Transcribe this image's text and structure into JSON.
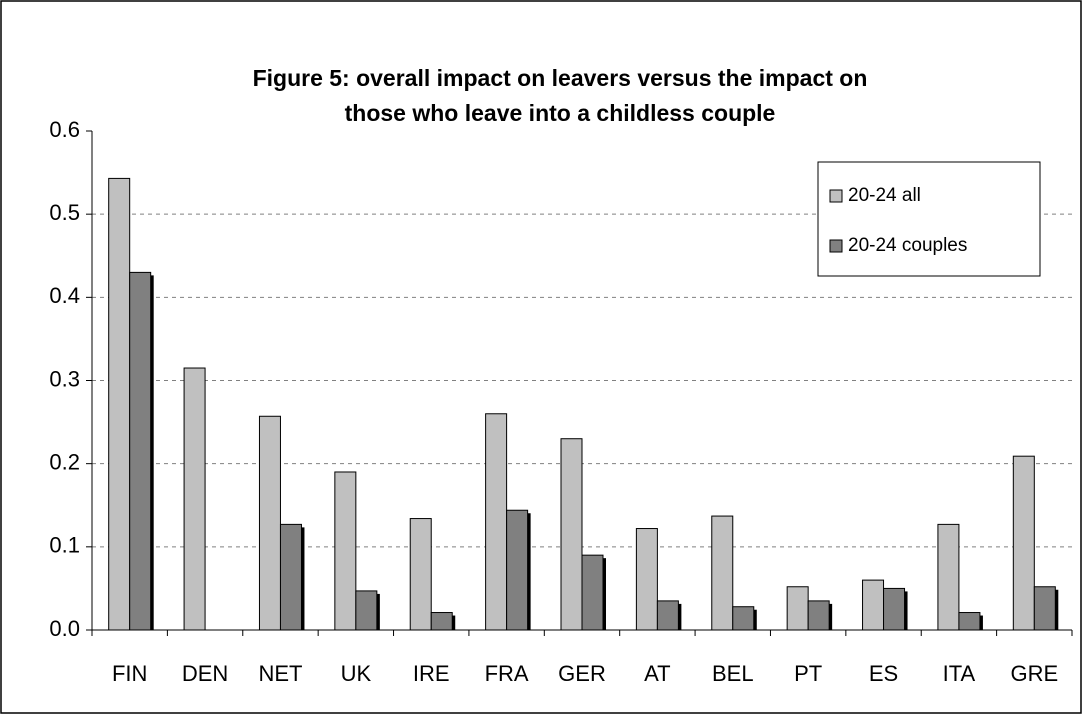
{
  "chart_data": {
    "type": "bar",
    "title": [
      "Figure 5: overall impact on leavers versus the impact on",
      "those who leave into a childless couple"
    ],
    "categories": [
      "FIN",
      "DEN",
      "NET",
      "UK",
      "IRE",
      "FRA",
      "GER",
      "AT",
      "BEL",
      "PT",
      "ES",
      "ITA",
      "GRE"
    ],
    "series": [
      {
        "name": "20-24 all",
        "color": "#c0c0c0",
        "values": [
          0.543,
          0.315,
          0.257,
          0.19,
          0.134,
          0.26,
          0.23,
          0.122,
          0.137,
          0.052,
          0.06,
          0.127,
          0.209
        ]
      },
      {
        "name": "20-24 couples",
        "color": "#808080",
        "values": [
          0.43,
          null,
          0.127,
          0.047,
          0.021,
          0.144,
          0.09,
          0.035,
          0.028,
          0.035,
          0.05,
          0.021,
          0.052
        ]
      }
    ],
    "ylim": [
      0,
      0.6
    ],
    "yticks": [
      {
        "value": 0,
        "label": "0.0"
      },
      0.1,
      0.2,
      0.3,
      0.4,
      0.5,
      0.6
    ],
    "grid": true,
    "legend": "upper-right"
  }
}
